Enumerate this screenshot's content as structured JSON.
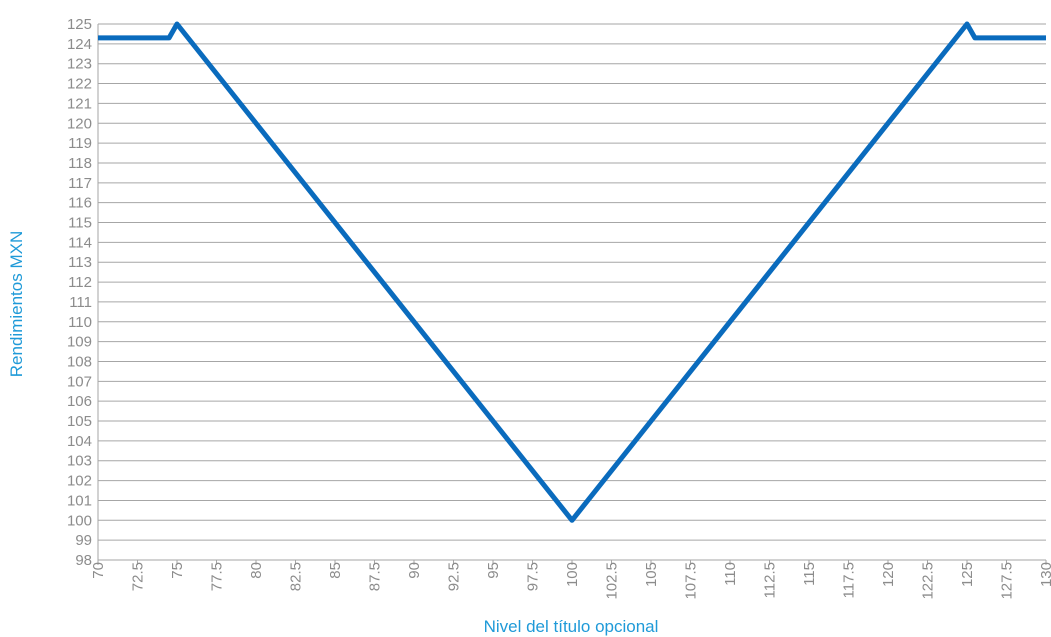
{
  "chart_data": {
    "type": "line",
    "title": "",
    "xlabel": "Nivel del título opcional",
    "ylabel": "Rendimientos MXN",
    "xlim": [
      70,
      130
    ],
    "ylim": [
      98,
      125
    ],
    "grid": true,
    "legend": "none",
    "x_ticks": [
      "70",
      "72.5",
      "75",
      "77.5",
      "80",
      "82.5",
      "85",
      "87.5",
      "90",
      "92.5",
      "95",
      "97.5",
      "100",
      "102.5",
      "105",
      "107.5",
      "110",
      "112.5",
      "115",
      "117.5",
      "120",
      "122.5",
      "125",
      "127.5",
      "130"
    ],
    "y_ticks": [
      "98",
      "99",
      "100",
      "101",
      "102",
      "103",
      "104",
      "105",
      "106",
      "107",
      "108",
      "109",
      "110",
      "111",
      "112",
      "113",
      "114",
      "115",
      "116",
      "117",
      "118",
      "119",
      "120",
      "121",
      "122",
      "123",
      "124",
      "125"
    ],
    "series": [
      {
        "color": "#0a6bbd",
        "points": [
          [
            70,
            124.3
          ],
          [
            74.5,
            124.3
          ],
          [
            75,
            125
          ],
          [
            100,
            100
          ],
          [
            125,
            125
          ],
          [
            125.5,
            124.3
          ],
          [
            130,
            124.3
          ]
        ]
      }
    ],
    "colors": {
      "axis_title": "#1f9ad8",
      "tick_label": "#8c8c8c",
      "grid": "#a6a6a6",
      "line": "#0a6bbd"
    }
  }
}
